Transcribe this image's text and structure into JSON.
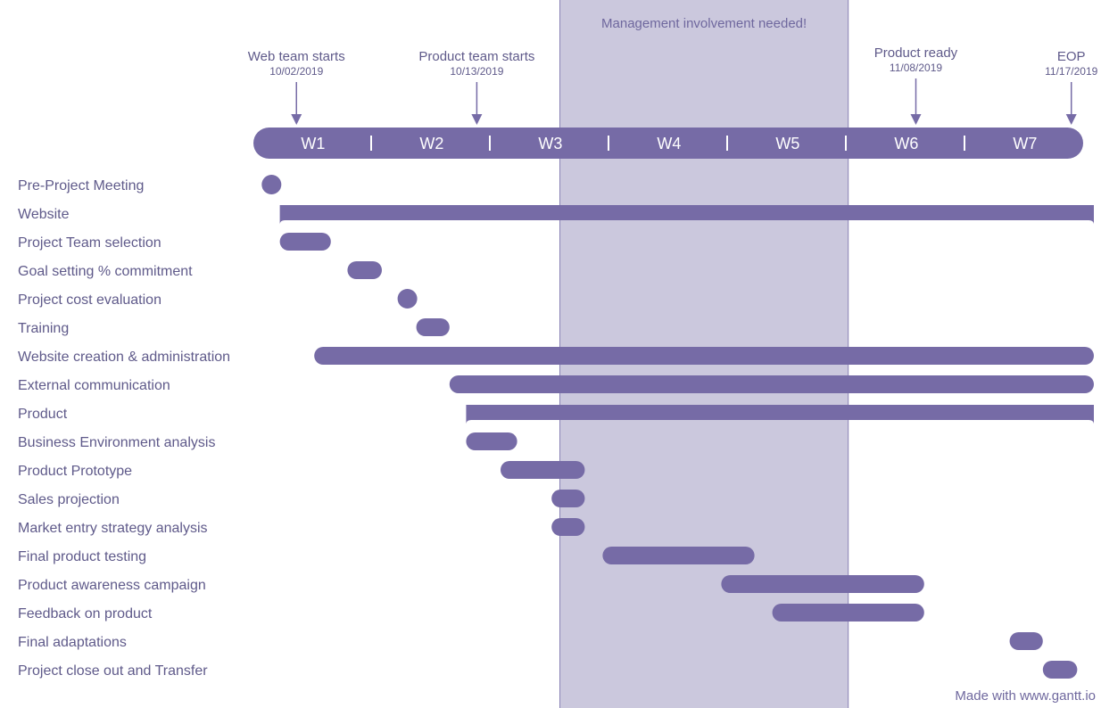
{
  "colors": {
    "bar": "#766ba6",
    "band": "#cbc8dd",
    "band_edge": "#8a82b5",
    "text": "#5f5a8a",
    "timeline_text": "#ffffff"
  },
  "chart_data": {
    "type": "gantt",
    "title": "",
    "weeks": [
      "W1",
      "W2",
      "W3",
      "W4",
      "W5",
      "W6",
      "W7"
    ],
    "time_unit": "week",
    "range": [
      0,
      7
    ],
    "band": {
      "label": "Management involvement needed!",
      "start": 2.5,
      "end": 4.93
    },
    "milestones": [
      {
        "label": "Web team starts",
        "date": "10/02/2019",
        "at": 0.28
      },
      {
        "label": "Product team starts",
        "date": "10/13/2019",
        "at": 1.8
      },
      {
        "label": "Product ready",
        "date": "11/08/2019",
        "at": 5.5
      },
      {
        "label": "EOP",
        "date": "11/17/2019",
        "at": 6.81
      }
    ],
    "tasks": [
      {
        "name": "Pre-Project Meeting",
        "start": 0.0,
        "end": 0.14,
        "kind": "milestone"
      },
      {
        "name": "Website",
        "start": 0.14,
        "end": 7.0,
        "kind": "group"
      },
      {
        "name": "Project Team selection",
        "start": 0.14,
        "end": 0.57,
        "kind": "task"
      },
      {
        "name": "Goal setting % commitment",
        "start": 0.71,
        "end": 1.0,
        "kind": "task"
      },
      {
        "name": "Project cost evaluation",
        "start": 1.14,
        "end": 1.29,
        "kind": "milestone"
      },
      {
        "name": "Training",
        "start": 1.29,
        "end": 1.57,
        "kind": "task"
      },
      {
        "name": "Website creation & administration",
        "start": 0.43,
        "end": 7.0,
        "kind": "task"
      },
      {
        "name": "External communication",
        "start": 1.57,
        "end": 7.0,
        "kind": "task"
      },
      {
        "name": "Product",
        "start": 1.71,
        "end": 7.0,
        "kind": "group"
      },
      {
        "name": "Business Environment analysis",
        "start": 1.71,
        "end": 2.14,
        "kind": "task"
      },
      {
        "name": "Product Prototype",
        "start": 2.0,
        "end": 2.71,
        "kind": "task"
      },
      {
        "name": "Sales projection",
        "start": 2.43,
        "end": 2.71,
        "kind": "task"
      },
      {
        "name": "Market entry strategy analysis",
        "start": 2.43,
        "end": 2.71,
        "kind": "task"
      },
      {
        "name": "Final product testing",
        "start": 2.86,
        "end": 4.14,
        "kind": "task"
      },
      {
        "name": "Product awareness campaign",
        "start": 3.86,
        "end": 5.57,
        "kind": "task"
      },
      {
        "name": "Feedback on product",
        "start": 4.29,
        "end": 5.57,
        "kind": "task"
      },
      {
        "name": "Final adaptations",
        "start": 6.29,
        "end": 6.57,
        "kind": "task"
      },
      {
        "name": "Project close out and Transfer",
        "start": 6.57,
        "end": 6.86,
        "kind": "task"
      }
    ]
  },
  "footer": {
    "credit": "Made with www.gantt.io"
  }
}
